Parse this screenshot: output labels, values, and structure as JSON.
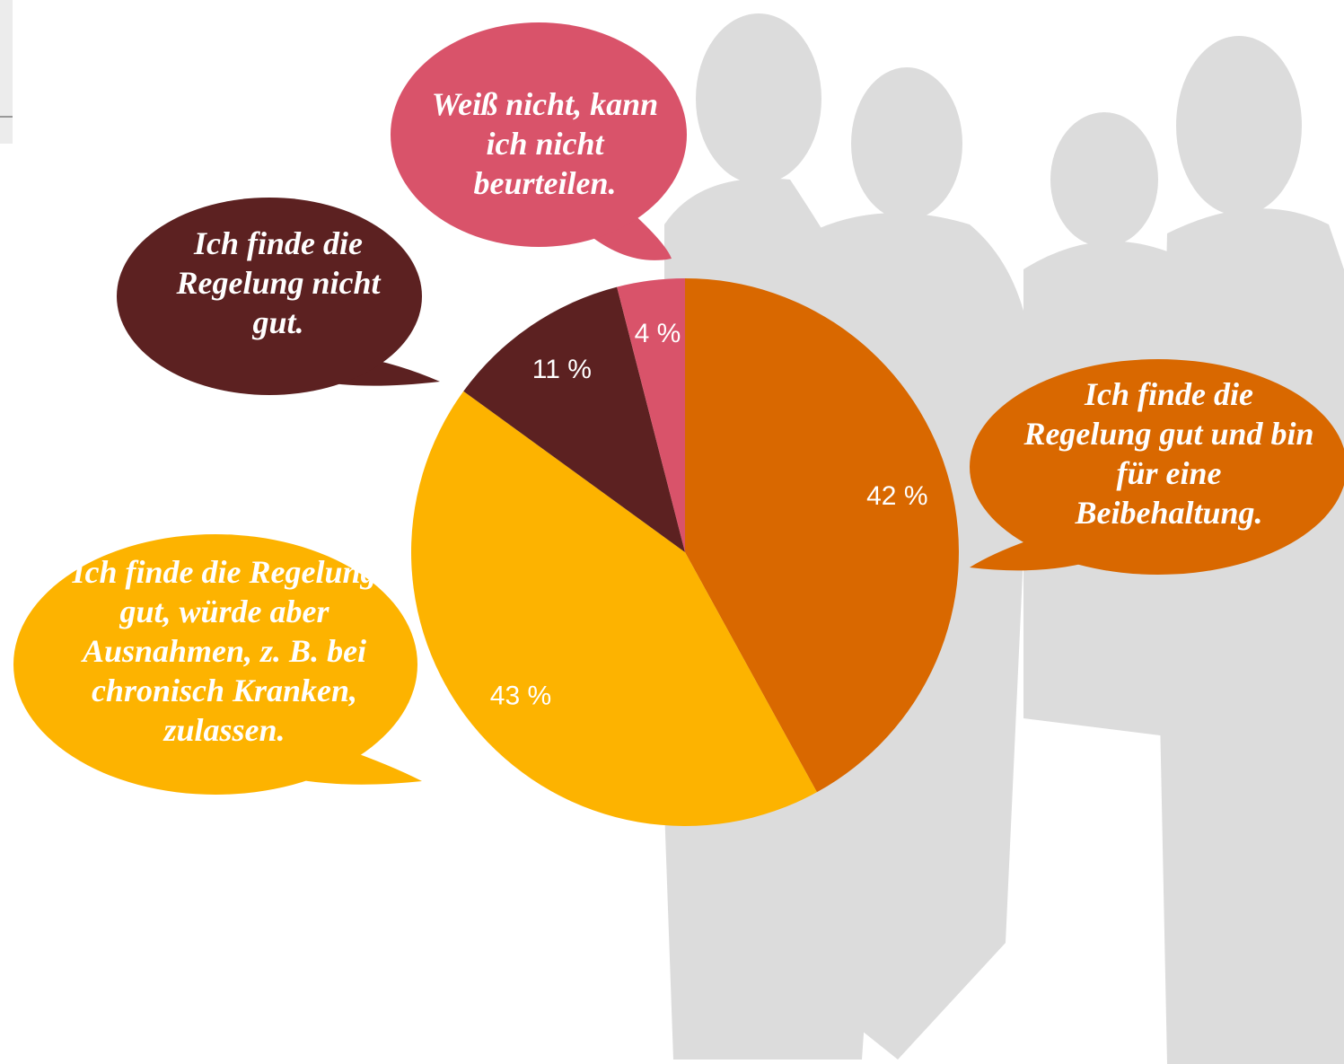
{
  "chart_data": {
    "type": "pie",
    "categories": [
      "Ich finde die Regelung gut und bin für eine Beibehaltung.",
      "Ich finde die Regelung gut, würde aber Ausnahmen, z. B. bei chronisch Kranken, zulassen.",
      "Ich finde die Regelung nicht gut.",
      "Weiß nicht, kann ich nicht beurteilen."
    ],
    "values": [
      42,
      43,
      11,
      4
    ],
    "value_labels": [
      "42 %",
      "43 %",
      "11 %",
      "4 %"
    ],
    "colors": [
      "#d96800",
      "#fdb300",
      "#5c2121",
      "#d9536a"
    ]
  }
}
